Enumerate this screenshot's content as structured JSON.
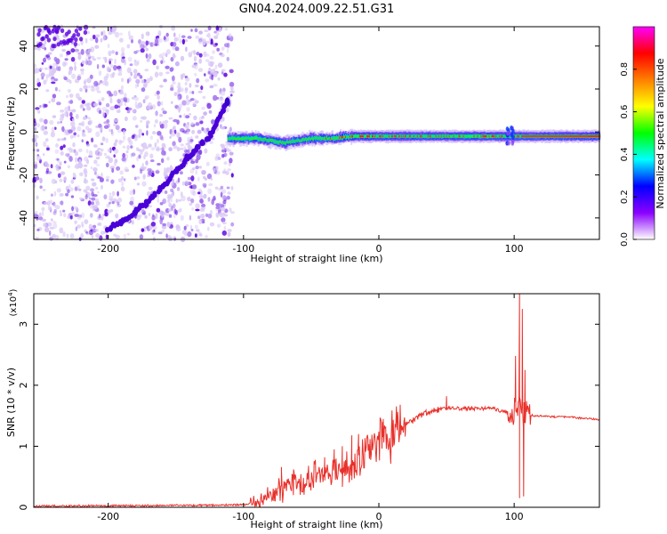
{
  "title": "GN04.2024.009.22.51.G31",
  "colors": {
    "snr_line": "#e8302a",
    "axis": "#000000",
    "scatter_low": "#d9c8f5",
    "scatter_mid": "#a070ee",
    "scatter_high": "#5a00e0"
  },
  "chart_data": [
    {
      "type": "heatmap",
      "title": "GN04.2024.009.22.51.G31",
      "xlabel": "Height of straight line (km)",
      "ylabel": "Frequency (Hz)",
      "xlim": [
        -255,
        163
      ],
      "ylim": [
        -50,
        49
      ],
      "xticks": [
        -200,
        -100,
        0,
        100
      ],
      "yticks": [
        -40,
        -20,
        0,
        20,
        40
      ],
      "noise_region_x": [
        -255,
        -108
      ],
      "arc_track": [
        [
          -200,
          -45
        ],
        [
          -185,
          -40
        ],
        [
          -170,
          -32
        ],
        [
          -155,
          -22
        ],
        [
          -140,
          -11
        ],
        [
          -125,
          -2
        ],
        [
          -112,
          14
        ]
      ],
      "signal_track": [
        [
          -112,
          -3
        ],
        [
          -90,
          -3
        ],
        [
          -70,
          -5
        ],
        [
          -50,
          -3
        ],
        [
          -35,
          -3
        ],
        [
          -20,
          -2
        ],
        [
          0,
          -2
        ],
        [
          20,
          -2
        ],
        [
          40,
          -2
        ],
        [
          60,
          -2
        ],
        [
          80,
          -2
        ],
        [
          96,
          -2
        ],
        [
          110,
          -2
        ],
        [
          130,
          -2
        ],
        [
          163,
          -2
        ]
      ],
      "colorbar": {
        "label": "Normalized spectral amplitude",
        "range": [
          0,
          1
        ],
        "ticks": [
          "0.0",
          "0.2",
          "0.4",
          "0.6",
          "0.8"
        ],
        "tick_values": [
          0.0,
          0.2,
          0.4,
          0.6,
          0.8
        ],
        "colors": [
          "#ffffff",
          "#8b00ff",
          "#0000ff",
          "#00ffff",
          "#00ff00",
          "#ffff00",
          "#ff7f00",
          "#ff0000",
          "#ff00ff"
        ]
      }
    },
    {
      "type": "line",
      "xlabel": "Height of straight line (km)",
      "ylabel": "SNR (10 * v/v)",
      "scale_label": "(x10",
      "scale_exp": "4",
      "xlim": [
        -255,
        163
      ],
      "ylim": [
        0,
        3.5
      ],
      "xticks": [
        -200,
        -100,
        0,
        100
      ],
      "yticks": [
        0,
        1,
        2,
        3
      ],
      "series": [
        {
          "x": [
            -255,
            -150,
            -100,
            -92,
            -85,
            -80,
            -75,
            -70,
            -65,
            -60,
            -55,
            -50,
            -45,
            -40,
            -35,
            -30,
            -25,
            -20,
            -15,
            -10,
            -5,
            0,
            5,
            10,
            15,
            20,
            25,
            30,
            35,
            40,
            45,
            50,
            55,
            60,
            65,
            70,
            75,
            80,
            85,
            90,
            95,
            100,
            103,
            105,
            107,
            110,
            115,
            120,
            130,
            140,
            150,
            163
          ],
          "y": [
            0.02,
            0.03,
            0.04,
            0.07,
            0.12,
            0.2,
            0.28,
            0.33,
            0.36,
            0.38,
            0.42,
            0.48,
            0.5,
            0.55,
            0.55,
            0.6,
            0.62,
            0.68,
            0.75,
            0.82,
            0.92,
            1.05,
            1.12,
            1.18,
            1.25,
            1.35,
            1.42,
            1.5,
            1.55,
            1.58,
            1.6,
            1.62,
            1.62,
            1.62,
            1.62,
            1.62,
            1.62,
            1.62,
            1.62,
            1.58,
            1.55,
            1.55,
            1.6,
            1.62,
            1.55,
            1.52,
            1.5,
            1.5,
            1.48,
            1.48,
            1.46,
            1.44
          ]
        }
      ],
      "spikes": [
        {
          "x": -72,
          "y": 0.66
        },
        {
          "x": -63,
          "y": 0.62
        },
        {
          "x": -52,
          "y": 0.68
        },
        {
          "x": -40,
          "y": 0.82
        },
        {
          "x": -33,
          "y": 0.95
        },
        {
          "x": -27,
          "y": 1.0
        },
        {
          "x": -20,
          "y": 1.18
        },
        {
          "x": -15,
          "y": 1.2
        },
        {
          "x": -8,
          "y": 1.12
        },
        {
          "x": 3,
          "y": 1.15
        },
        {
          "x": 50,
          "y": 1.82
        },
        {
          "x": 97,
          "y": 1.48
        },
        {
          "x": 101,
          "y": 2.48
        },
        {
          "x": 104,
          "y": 3.52
        },
        {
          "x": 106,
          "y": 3.25
        },
        {
          "x": 108,
          "y": 2.25
        },
        {
          "x": 104,
          "y": 0.15
        },
        {
          "x": 107,
          "y": 0.18
        }
      ]
    }
  ]
}
